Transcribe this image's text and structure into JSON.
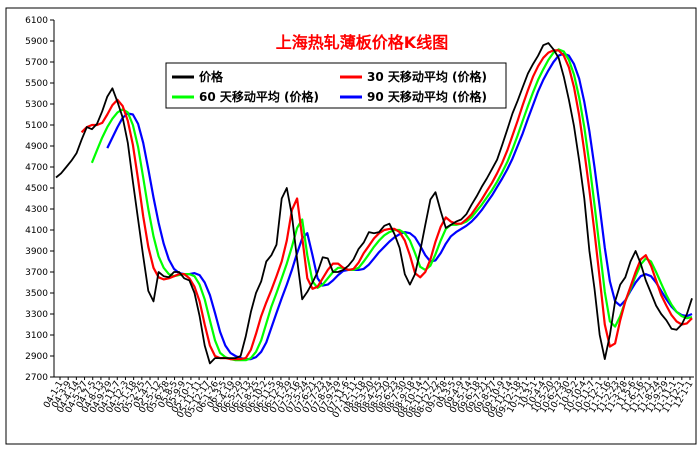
{
  "chart_data": {
    "type": "line",
    "title": "上海热轧薄板价格K线图",
    "xlabel": "",
    "ylabel": "",
    "ylim": [
      2700,
      6100
    ],
    "yticks": [
      2700,
      2900,
      3100,
      3300,
      3500,
      3700,
      3900,
      4100,
      4300,
      4500,
      4700,
      4900,
      5100,
      5300,
      5500,
      5700,
      5900,
      6100
    ],
    "grid": false,
    "legend": "top-center",
    "colors": {
      "price": "#000000",
      "ma30": "#ff0000",
      "ma60": "#00ff00",
      "ma90": "#0000ff",
      "title": "#ff0000"
    },
    "x_tick_labels": [
      "04-1-1",
      "04-3-9",
      "04-4-14",
      "04-5-27",
      "04-7-5",
      "04-8-13",
      "04-9-29",
      "04-11-7",
      "04-12-3",
      "05-1-18",
      "05-2-25",
      "05-4-7",
      "05-5-12",
      "05-6-28",
      "05-8-5",
      "05-9-9",
      "05-10-1",
      "05-11-11",
      "05-12-17",
      "06-1-26",
      "06-3-5",
      "06-4-19",
      "06-5-29",
      "06-7-13",
      "06-8-25",
      "06-10-2",
      "06-11-5",
      "06-12-8",
      "07-1-29",
      "07-3-16",
      "07-5-24",
      "07-6-21",
      "07-7-23",
      "07-8-24",
      "07-9-29",
      "07-11-6",
      "07-12-11",
      "08-1-18",
      "08-3-20",
      "08-4-25",
      "08-5-20",
      "08-6-23",
      "08-7-30",
      "08-9-18",
      "08-10-14",
      "08-11-17",
      "08-12-22",
      "09-1-28",
      "09-3-5",
      "09-4-9",
      "09-5-14",
      "09-6-18",
      "09-7-21",
      "09-8-27",
      "09-10-9",
      "09-11-14",
      "09-12-18",
      "10-1-21",
      "10-3-1",
      "10-4-4",
      "10-5-20",
      "10-6-23",
      "10-7-30",
      "10-9-2",
      "10-10-4",
      "10-11-7",
      "10-12-1",
      "11-1-16",
      "11-2-23",
      "11-3-28",
      "11-5-6",
      "11-6-16",
      "11-7-21",
      "11-8-24",
      "11-9-29",
      "11-11-1",
      "11-12-1",
      "12-1-1"
    ],
    "series": [
      {
        "name": "价格",
        "color": "#000000",
        "values": [
          4600,
          4640,
          4700,
          4760,
          4830,
          4960,
          5080,
          5060,
          5110,
          5230,
          5370,
          5450,
          5320,
          5170,
          4930,
          4560,
          4200,
          3850,
          3520,
          3420,
          3700,
          3660,
          3650,
          3700,
          3700,
          3640,
          3620,
          3500,
          3280,
          3000,
          2830,
          2880,
          2880,
          2880,
          2880,
          2880,
          2900,
          3090,
          3320,
          3500,
          3610,
          3800,
          3860,
          3960,
          4400,
          4500,
          4240,
          3820,
          3440,
          3510,
          3600,
          3700,
          3840,
          3830,
          3700,
          3700,
          3720,
          3760,
          3820,
          3920,
          3980,
          4080,
          4070,
          4080,
          4140,
          4160,
          4060,
          3930,
          3680,
          3580,
          3680,
          3900,
          4150,
          4390,
          4460,
          4280,
          4120,
          4150,
          4180,
          4200,
          4250,
          4340,
          4420,
          4510,
          4590,
          4680,
          4770,
          4910,
          5060,
          5210,
          5330,
          5460,
          5590,
          5680,
          5760,
          5860,
          5880,
          5820,
          5740,
          5560,
          5340,
          5090,
          4760,
          4400,
          3900,
          3540,
          3100,
          2870,
          3100,
          3420,
          3580,
          3650,
          3800,
          3900,
          3780,
          3620,
          3500,
          3380,
          3300,
          3240,
          3160,
          3150,
          3200,
          3300,
          3450
        ]
      },
      {
        "name": "30 天移动平均 (价格)",
        "color": "#ff0000",
        "values": [
          null,
          null,
          null,
          null,
          null,
          5030,
          5080,
          5100,
          5100,
          5120,
          5200,
          5290,
          5340,
          5280,
          5140,
          4910,
          4580,
          4230,
          3940,
          3740,
          3650,
          3630,
          3640,
          3660,
          3680,
          3680,
          3640,
          3560,
          3420,
          3200,
          3000,
          2900,
          2880,
          2880,
          2870,
          2870,
          2870,
          2880,
          2960,
          3110,
          3280,
          3410,
          3530,
          3660,
          3800,
          4000,
          4290,
          4400,
          4030,
          3640,
          3540,
          3560,
          3640,
          3720,
          3780,
          3780,
          3740,
          3720,
          3730,
          3790,
          3880,
          3950,
          4020,
          4070,
          4100,
          4110,
          4110,
          4080,
          4000,
          3860,
          3690,
          3650,
          3700,
          3820,
          3990,
          4130,
          4220,
          4180,
          4160,
          4160,
          4200,
          4250,
          4320,
          4390,
          4470,
          4550,
          4640,
          4740,
          4860,
          5000,
          5140,
          5290,
          5430,
          5560,
          5660,
          5740,
          5790,
          5810,
          5810,
          5760,
          5650,
          5460,
          5190,
          4850,
          4480,
          4080,
          3640,
          3200,
          2990,
          3020,
          3240,
          3420,
          3560,
          3700,
          3820,
          3860,
          3760,
          3620,
          3480,
          3380,
          3290,
          3230,
          3200,
          3210,
          3260
        ]
      },
      {
        "name": "60 天移动平均 (价格)",
        "color": "#00ff00",
        "values": [
          null,
          null,
          null,
          null,
          null,
          null,
          null,
          4740,
          4860,
          4980,
          5080,
          5160,
          5220,
          5250,
          5220,
          5100,
          4890,
          4600,
          4300,
          4040,
          3850,
          3740,
          3680,
          3660,
          3670,
          3680,
          3680,
          3660,
          3580,
          3440,
          3240,
          3050,
          2930,
          2890,
          2870,
          2860,
          2860,
          2860,
          2880,
          2940,
          3050,
          3210,
          3370,
          3500,
          3640,
          3780,
          3940,
          4120,
          4200,
          3860,
          3610,
          3550,
          3580,
          3640,
          3700,
          3740,
          3740,
          3720,
          3720,
          3740,
          3800,
          3870,
          3940,
          4000,
          4050,
          4080,
          4100,
          4100,
          4070,
          4000,
          3880,
          3750,
          3720,
          3760,
          3870,
          4000,
          4110,
          4150,
          4150,
          4160,
          4180,
          4220,
          4280,
          4340,
          4410,
          4480,
          4560,
          4650,
          4750,
          4870,
          5000,
          5140,
          5280,
          5410,
          5530,
          5630,
          5720,
          5790,
          5820,
          5800,
          5720,
          5580,
          5360,
          5080,
          4730,
          4340,
          3920,
          3510,
          3230,
          3180,
          3280,
          3420,
          3540,
          3660,
          3770,
          3830,
          3800,
          3700,
          3590,
          3480,
          3390,
          3320,
          3280,
          3260,
          3270
        ]
      },
      {
        "name": "90 天移动平均 (价格)",
        "color": "#0000ff",
        "values": [
          null,
          null,
          null,
          null,
          null,
          null,
          null,
          null,
          null,
          null,
          4880,
          4980,
          5080,
          5170,
          5210,
          5200,
          5110,
          4930,
          4680,
          4410,
          4170,
          3970,
          3820,
          3730,
          3690,
          3680,
          3680,
          3690,
          3670,
          3600,
          3480,
          3310,
          3130,
          3000,
          2930,
          2900,
          2880,
          2870,
          2870,
          2890,
          2940,
          3030,
          3170,
          3310,
          3450,
          3580,
          3720,
          3880,
          4020,
          4070,
          3860,
          3640,
          3570,
          3580,
          3620,
          3670,
          3710,
          3720,
          3720,
          3720,
          3730,
          3770,
          3830,
          3890,
          3940,
          3990,
          4030,
          4060,
          4080,
          4070,
          4030,
          3950,
          3860,
          3800,
          3810,
          3880,
          3970,
          4040,
          4080,
          4110,
          4140,
          4180,
          4230,
          4290,
          4360,
          4430,
          4510,
          4590,
          4680,
          4780,
          4900,
          5020,
          5160,
          5290,
          5420,
          5530,
          5620,
          5700,
          5760,
          5780,
          5760,
          5680,
          5540,
          5320,
          5040,
          4700,
          4320,
          3930,
          3610,
          3420,
          3380,
          3430,
          3520,
          3600,
          3660,
          3680,
          3660,
          3600,
          3520,
          3440,
          3370,
          3320,
          3290,
          3280,
          3300
        ]
      }
    ]
  }
}
